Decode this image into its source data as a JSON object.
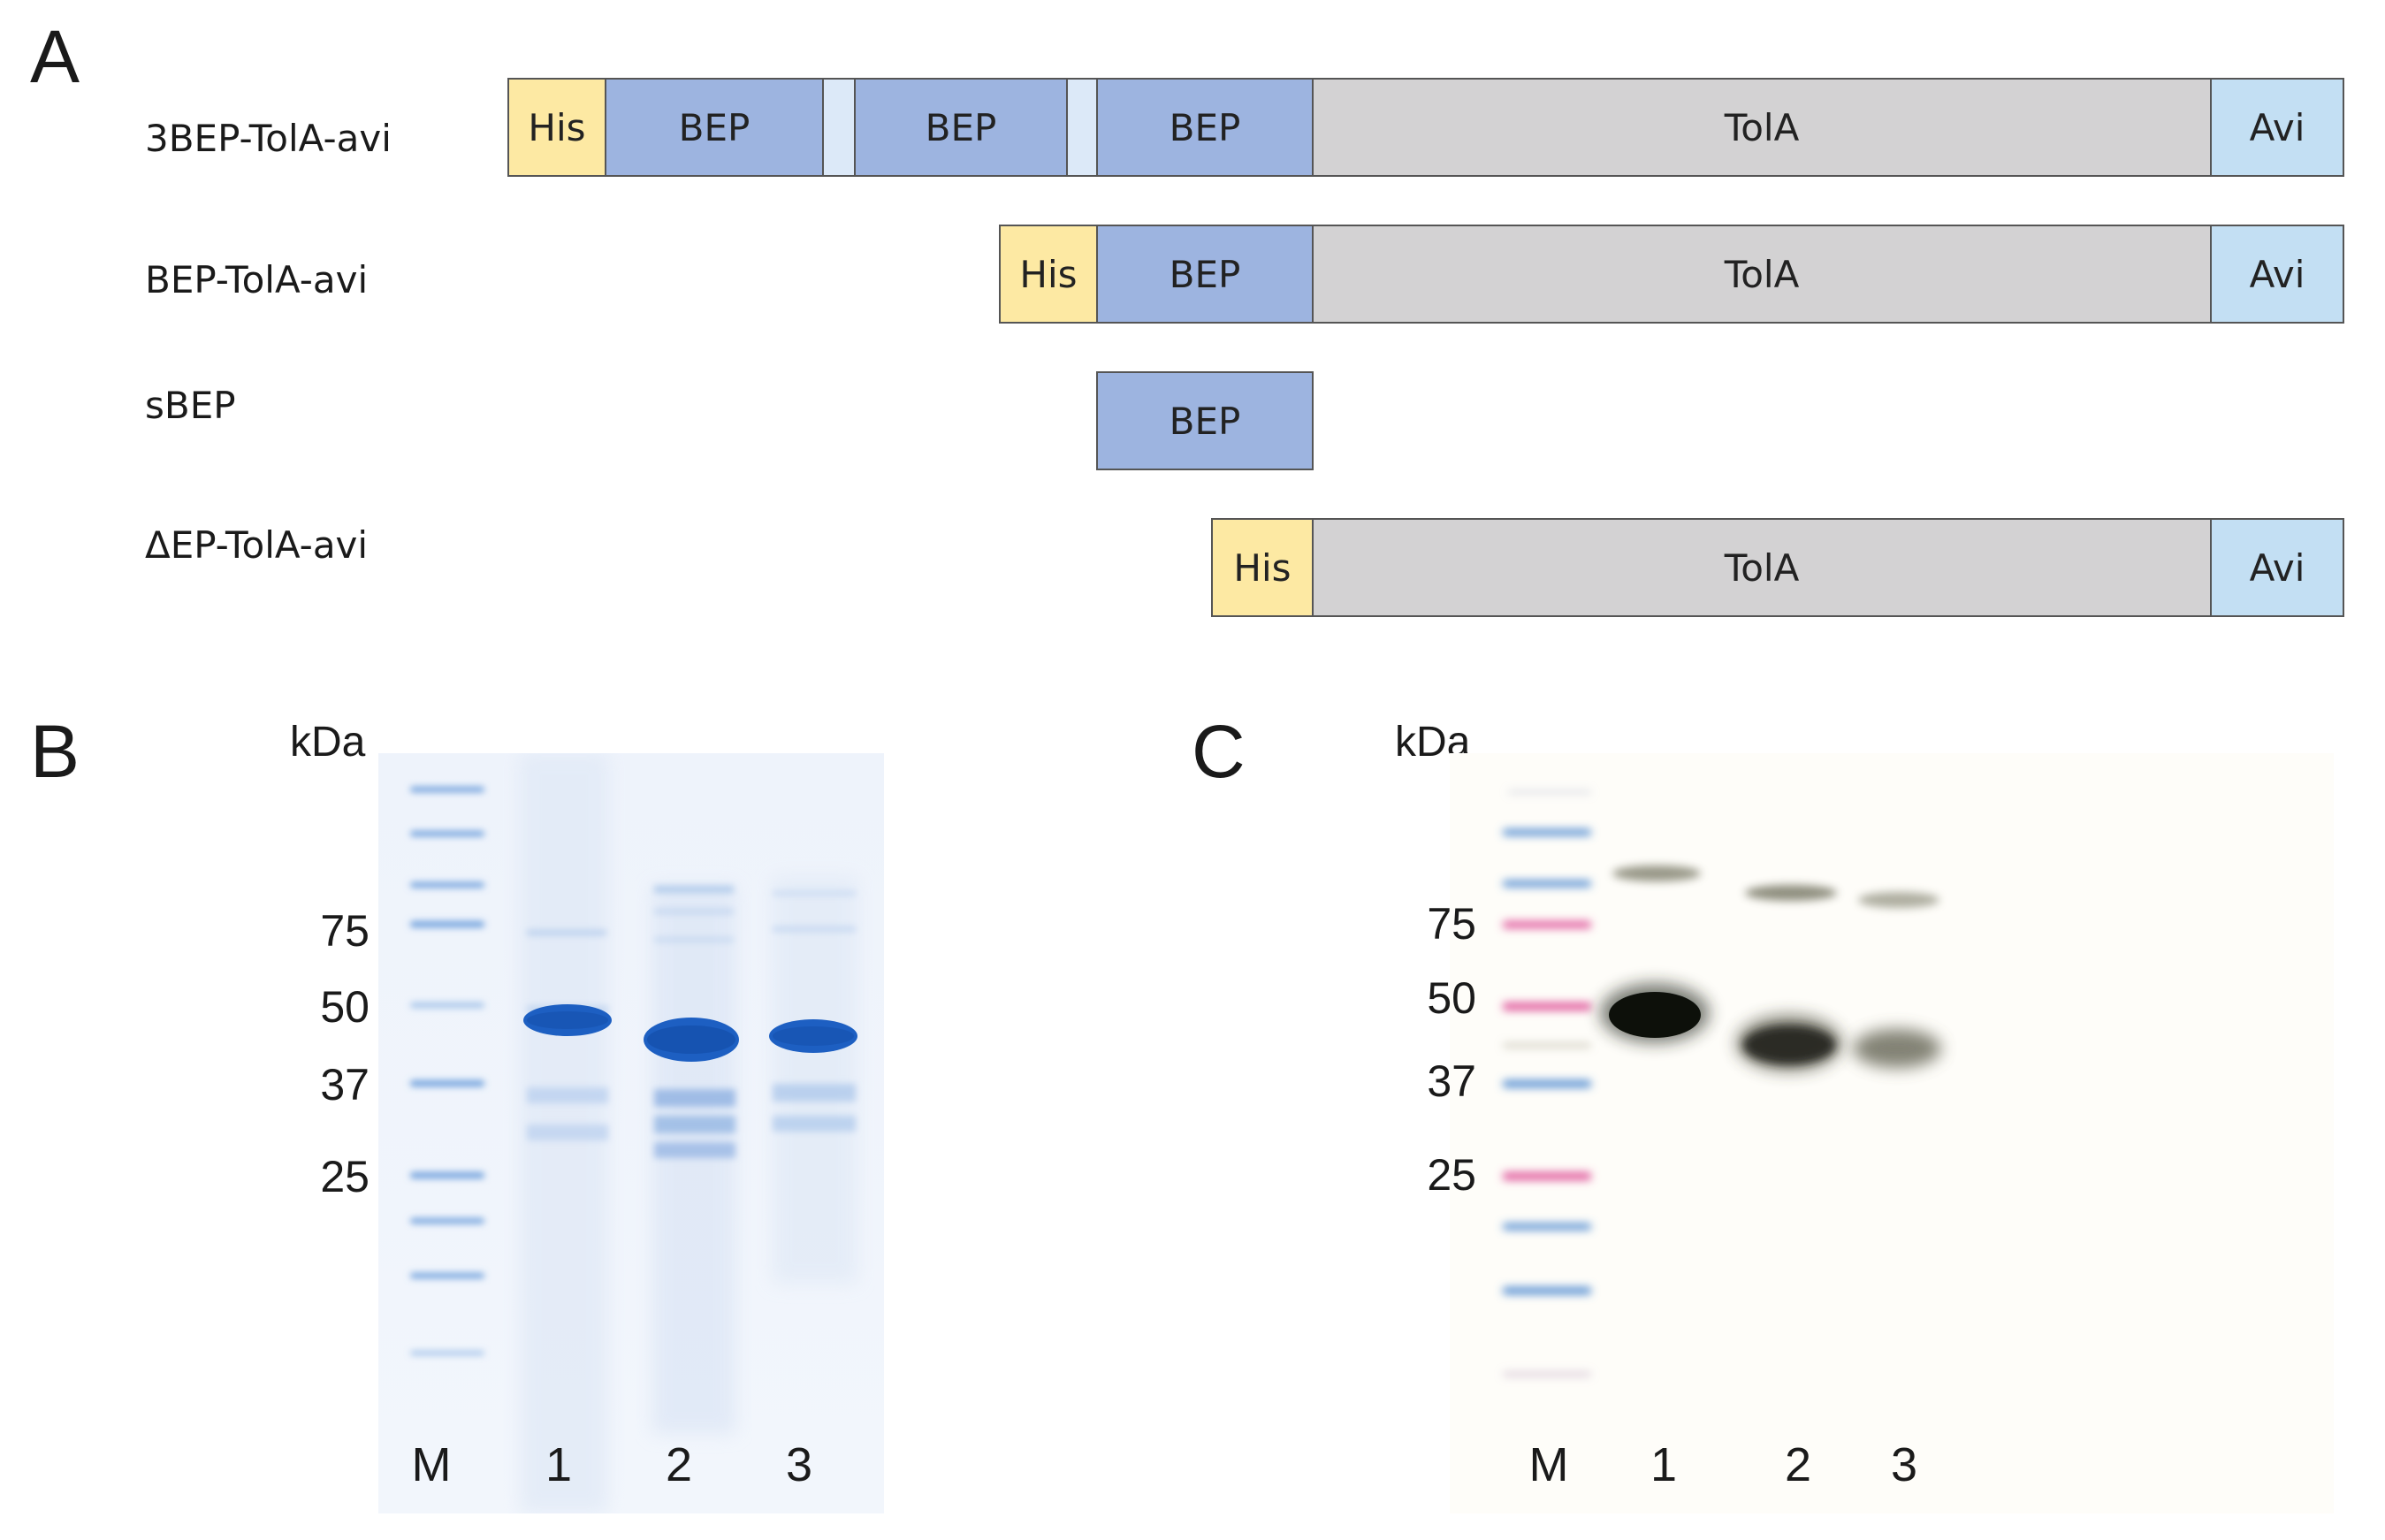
{
  "panels": [
    "A",
    "B",
    "C"
  ],
  "colors": {
    "his": "#fde9a3",
    "bep": "#9db4e0",
    "linker": "#dce9f8",
    "tola": "#d3d2d3",
    "avi": "#c3dff3"
  },
  "diagram": {
    "constructs": [
      {
        "label": "3BEP-TolA-avi",
        "segments": [
          {
            "text": "His",
            "kind": "his"
          },
          {
            "text": "BEP",
            "kind": "bep"
          },
          {
            "text": "",
            "kind": "linker"
          },
          {
            "text": "BEP",
            "kind": "bep"
          },
          {
            "text": "",
            "kind": "linker"
          },
          {
            "text": "BEP",
            "kind": "bep"
          },
          {
            "text": "TolA",
            "kind": "tola"
          },
          {
            "text": "Avi",
            "kind": "avi"
          }
        ]
      },
      {
        "label": "BEP-TolA-avi",
        "segments": [
          {
            "text": "His",
            "kind": "his"
          },
          {
            "text": "BEP",
            "kind": "bep"
          },
          {
            "text": "TolA",
            "kind": "tola"
          },
          {
            "text": "Avi",
            "kind": "avi"
          }
        ]
      },
      {
        "label": "sBEP",
        "segments": [
          {
            "text": "BEP",
            "kind": "bep"
          }
        ]
      },
      {
        "label": "ΔEP-TolA-avi",
        "segments": [
          {
            "text": "His",
            "kind": "his"
          },
          {
            "text": "TolA",
            "kind": "tola"
          },
          {
            "text": "Avi",
            "kind": "avi"
          }
        ]
      }
    ]
  },
  "gels": [
    {
      "panel": "B",
      "unit": "kDa",
      "markers": [
        "75",
        "50",
        "37",
        "25"
      ],
      "lanes": [
        "M",
        "1",
        "2",
        "3"
      ],
      "stain": "Coomassie"
    },
    {
      "panel": "C",
      "unit": "kDa",
      "markers": [
        "75",
        "50",
        "37",
        "25"
      ],
      "lanes": [
        "M",
        "1",
        "2",
        "3"
      ],
      "stain": "Western blot"
    }
  ]
}
